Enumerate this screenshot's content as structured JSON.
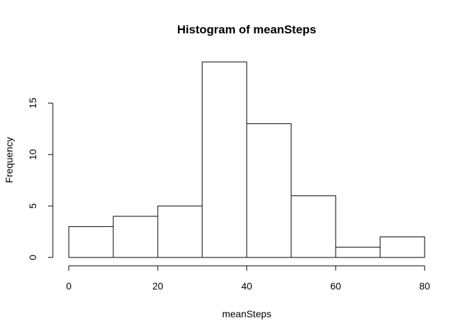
{
  "chart_data": {
    "type": "bar",
    "title": "Histogram of meanSteps",
    "xlabel": "meanSteps",
    "ylabel": "Frequency",
    "bins": [
      {
        "from": 0,
        "to": 10,
        "count": 3
      },
      {
        "from": 10,
        "to": 20,
        "count": 4
      },
      {
        "from": 20,
        "to": 30,
        "count": 5
      },
      {
        "from": 30,
        "to": 40,
        "count": 19
      },
      {
        "from": 40,
        "to": 50,
        "count": 13
      },
      {
        "from": 50,
        "to": 60,
        "count": 6
      },
      {
        "from": 60,
        "to": 70,
        "count": 1
      },
      {
        "from": 70,
        "to": 80,
        "count": 2
      }
    ],
    "xlim": [
      0,
      80
    ],
    "ylim": [
      0,
      19
    ],
    "x_ticks": [
      "0",
      "20",
      "40",
      "60",
      "80"
    ],
    "y_ticks": [
      "0",
      "5",
      "10",
      "15"
    ],
    "grid": false,
    "bar_fill": "#ffffff",
    "bar_stroke": "#000000"
  }
}
